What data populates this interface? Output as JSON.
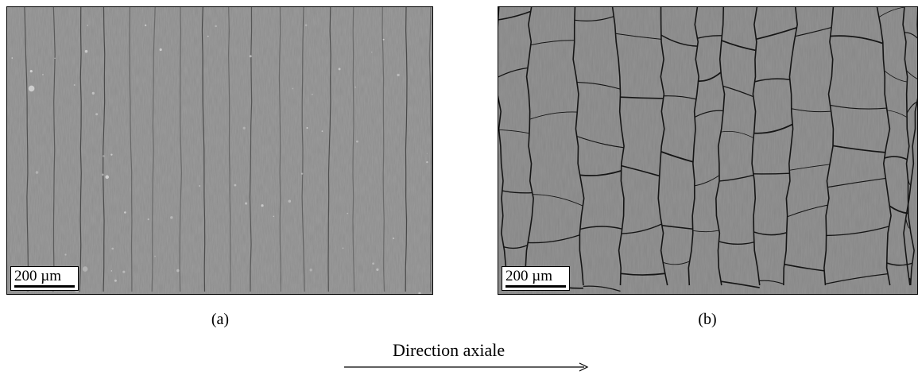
{
  "panels": [
    {
      "id": "a",
      "caption": "(a)",
      "scale_label": "200 µm",
      "texture": "vertical-stripes"
    },
    {
      "id": "b",
      "caption": "(b)",
      "scale_label": "200 µm",
      "texture": "cracked-network"
    }
  ],
  "direction_label": "Direction axiale",
  "colors": {
    "sem_gray_a": "#8a8a8a",
    "sem_gray_b": "#858585",
    "crack": "#1a1a1a"
  }
}
